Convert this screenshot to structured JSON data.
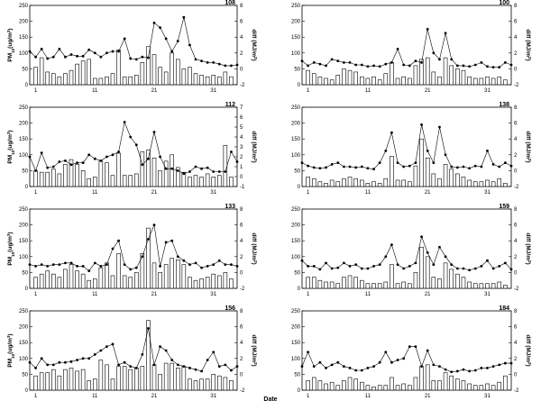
{
  "figure": {
    "xlabel": "Date"
  },
  "chart_data": [
    {
      "type": "bar+line",
      "title": "108",
      "ylabel": "PM10(ug/m3)",
      "y2label": "diff (MJ/m2)",
      "ylim": [
        0,
        250
      ],
      "yticks": [
        0,
        50,
        100,
        150,
        200,
        250
      ],
      "y2lim": [
        -2,
        8
      ],
      "y2ticks": [
        -2,
        0,
        2,
        4,
        6,
        8
      ],
      "xticks": [
        1,
        11,
        21,
        31
      ],
      "bars": [
        55,
        85,
        40,
        35,
        25,
        35,
        45,
        65,
        75,
        80,
        20,
        20,
        25,
        35,
        110,
        25,
        25,
        30,
        70,
        120,
        95,
        55,
        40,
        100,
        80,
        50,
        55,
        35,
        30,
        25,
        30,
        25,
        40,
        25
      ],
      "line": [
        2.2,
        1.5,
        2.5,
        1.3,
        1.5,
        2.5,
        1.5,
        1.8,
        1.6,
        1.6,
        2.4,
        2.0,
        1.5,
        2.0,
        2.2,
        2.2,
        3.8,
        1.3,
        1.2,
        1.5,
        1.4,
        5.8,
        5.2,
        3.8,
        2.2,
        3.5,
        6.5,
        3.0,
        1.2,
        1.0,
        0.8,
        0.8,
        0.6,
        0.4,
        0.4,
        0.5
      ]
    },
    {
      "type": "bar+line",
      "title": "100",
      "ylabel": "",
      "y2label": "diff (MJ/m2)",
      "ylim": [
        0,
        250
      ],
      "yticks": [
        0,
        50,
        100,
        150,
        200,
        250
      ],
      "y2lim": [
        -2,
        8
      ],
      "y2ticks": [
        -2,
        0,
        2,
        4,
        6,
        8
      ],
      "xticks": [
        1,
        11,
        21,
        31
      ],
      "bars": [
        45,
        35,
        25,
        20,
        15,
        30,
        50,
        45,
        40,
        25,
        20,
        25,
        15,
        35,
        70,
        20,
        25,
        20,
        60,
        80,
        85,
        40,
        25,
        85,
        60,
        50,
        45,
        25,
        20,
        20,
        25,
        20,
        25,
        15
      ],
      "line": [
        1.0,
        0.4,
        0.8,
        0.6,
        0.4,
        1.2,
        1.0,
        0.8,
        0.8,
        0.5,
        0.5,
        0.3,
        0.4,
        0.3,
        0.6,
        0.8,
        2.5,
        0.5,
        0.4,
        1.0,
        0.8,
        5.0,
        2.0,
        1.2,
        4.5,
        1.2,
        0.4,
        0.4,
        0.3,
        0.5,
        0.8,
        0.3,
        0.2,
        0.2,
        0.8,
        0.5
      ]
    },
    {
      "type": "bar+line",
      "title": "112",
      "ylabel": "PM10(ug/m3)",
      "y2label": "diff (MJ/m2)",
      "ylim": [
        0,
        250
      ],
      "yticks": [
        0,
        50,
        100,
        150,
        200,
        250
      ],
      "y2lim": [
        -1,
        7
      ],
      "y2ticks": [
        -1,
        0,
        1,
        2,
        3,
        4,
        5,
        6,
        7
      ],
      "xticks": [
        1,
        11,
        21,
        31
      ],
      "bars": [
        50,
        45,
        45,
        55,
        40,
        70,
        85,
        70,
        50,
        25,
        30,
        80,
        75,
        35,
        105,
        35,
        35,
        40,
        110,
        115,
        90,
        50,
        80,
        100,
        60,
        45,
        30,
        35,
        30,
        40,
        30,
        35,
        130,
        30
      ],
      "line": [
        2.0,
        0.6,
        2.4,
        0.9,
        1.0,
        1.5,
        1.6,
        1.2,
        1.4,
        1.4,
        2.2,
        1.8,
        1.6,
        2.0,
        2.2,
        2.5,
        5.5,
        4.0,
        3.2,
        1.2,
        1.8,
        4.5,
        2.0,
        0.8,
        0.8,
        0.6,
        0.3,
        0.5,
        1.0,
        0.8,
        0.9,
        0.5,
        0.5,
        0.5,
        2.5,
        1.5
      ]
    },
    {
      "type": "bar+line",
      "title": "138",
      "ylabel": "",
      "y2label": "diff (MJ/m2)",
      "ylim": [
        0,
        250
      ],
      "yticks": [
        0,
        50,
        100,
        150,
        200,
        250
      ],
      "y2lim": [
        -2,
        8
      ],
      "y2ticks": [
        -2,
        0,
        2,
        4,
        6,
        8
      ],
      "xticks": [
        1,
        11,
        21,
        31
      ],
      "bars": [
        30,
        25,
        15,
        10,
        20,
        15,
        25,
        30,
        25,
        20,
        10,
        15,
        10,
        25,
        95,
        20,
        20,
        15,
        65,
        150,
        90,
        40,
        25,
        70,
        55,
        40,
        30,
        20,
        15,
        15,
        20,
        15,
        25,
        10
      ],
      "line": [
        1.0,
        0.6,
        0.4,
        0.3,
        0.4,
        0.8,
        1.0,
        0.5,
        0.5,
        0.4,
        0.5,
        0.3,
        0.2,
        1.0,
        2.5,
        4.8,
        1.0,
        0.5,
        0.6,
        1.0,
        5.8,
        2.5,
        1.0,
        5.5,
        2.0,
        0.5,
        0.4,
        0.5,
        0.3,
        0.6,
        0.5,
        2.5,
        0.8,
        0.5,
        1.0,
        0.6
      ]
    },
    {
      "type": "bar+line",
      "title": "133",
      "ylabel": "PM10(ug/m3)",
      "y2label": "diff (MJ/m2)",
      "ylim": [
        0,
        250
      ],
      "yticks": [
        0,
        50,
        100,
        150,
        200,
        250
      ],
      "y2lim": [
        -2,
        8
      ],
      "y2ticks": [
        -2,
        0,
        2,
        4,
        6,
        8
      ],
      "xticks": [
        1,
        11,
        21,
        31
      ],
      "bars": [
        35,
        45,
        55,
        45,
        35,
        60,
        75,
        55,
        45,
        25,
        30,
        65,
        80,
        40,
        110,
        40,
        35,
        50,
        110,
        190,
        80,
        50,
        75,
        95,
        90,
        75,
        35,
        25,
        30,
        35,
        45,
        40,
        50,
        30
      ],
      "line": [
        1.0,
        0.8,
        1.0,
        0.8,
        1.0,
        1.0,
        1.2,
        1.2,
        0.8,
        0.8,
        0.2,
        1.2,
        0.8,
        1.0,
        3.0,
        4.0,
        1.0,
        0.4,
        0.6,
        2.0,
        4.2,
        6.0,
        0.8,
        3.8,
        4.0,
        2.0,
        1.5,
        1.0,
        1.2,
        0.6,
        0.8,
        1.0,
        1.5,
        1.0,
        1.0,
        0.8
      ]
    },
    {
      "type": "bar+line",
      "title": "159",
      "ylabel": "",
      "y2label": "diff (MJ/m2)",
      "ylim": [
        0,
        250
      ],
      "yticks": [
        0,
        50,
        100,
        150,
        200,
        250
      ],
      "y2lim": [
        -2,
        8
      ],
      "y2ticks": [
        -2,
        0,
        2,
        4,
        6,
        8
      ],
      "xticks": [
        1,
        11,
        21,
        31
      ],
      "bars": [
        35,
        35,
        25,
        20,
        20,
        15,
        35,
        40,
        35,
        25,
        15,
        15,
        15,
        20,
        75,
        15,
        20,
        15,
        50,
        130,
        100,
        35,
        30,
        80,
        60,
        45,
        35,
        20,
        15,
        15,
        15,
        15,
        20,
        10
      ],
      "line": [
        1.5,
        0.8,
        0.8,
        0.4,
        1.2,
        0.5,
        0.6,
        1.2,
        0.8,
        1.0,
        0.5,
        0.5,
        0.8,
        1.0,
        2.0,
        3.5,
        1.0,
        0.5,
        0.8,
        1.2,
        4.5,
        2.5,
        1.0,
        3.2,
        2.0,
        1.0,
        0.5,
        0.5,
        0.3,
        0.5,
        0.8,
        1.5,
        0.5,
        0.8,
        1.2,
        0.4
      ]
    },
    {
      "type": "bar+line",
      "title": "156",
      "ylabel": "PM10(ug/m3)",
      "y2label": "diff (MJ/m2)",
      "ylim": [
        0,
        250
      ],
      "yticks": [
        0,
        50,
        100,
        150,
        200,
        250
      ],
      "y2lim": [
        -2,
        8
      ],
      "y2ticks": [
        -2,
        0,
        2,
        4,
        6,
        8
      ],
      "xticks": [
        1,
        11,
        21,
        31
      ],
      "bars": [
        45,
        55,
        55,
        65,
        45,
        65,
        70,
        60,
        65,
        30,
        35,
        95,
        80,
        35,
        75,
        75,
        65,
        70,
        75,
        220,
        80,
        50,
        85,
        85,
        70,
        75,
        35,
        30,
        35,
        35,
        50,
        45,
        40,
        30
      ],
      "line": [
        1.5,
        0.8,
        2.0,
        1.2,
        1.2,
        1.5,
        1.5,
        1.6,
        1.8,
        2.0,
        2.0,
        2.5,
        3.0,
        3.5,
        3.8,
        1.2,
        1.5,
        1.0,
        0.8,
        2.5,
        5.8,
        1.2,
        3.5,
        3.0,
        1.8,
        1.2,
        1.0,
        0.8,
        0.6,
        0.4,
        1.8,
        2.8,
        1.0,
        1.2,
        0.5,
        1.0
      ]
    },
    {
      "type": "bar+line",
      "title": "184",
      "ylabel": "",
      "y2label": "diff (MJ/m2)",
      "ylim": [
        0,
        250
      ],
      "yticks": [
        0,
        50,
        100,
        150,
        200,
        250
      ],
      "y2lim": [
        -2,
        8
      ],
      "y2ticks": [
        -2,
        0,
        2,
        4,
        6,
        8
      ],
      "xticks": [
        1,
        11,
        21,
        31
      ],
      "bars": [
        30,
        40,
        30,
        20,
        25,
        15,
        30,
        40,
        35,
        25,
        15,
        10,
        15,
        15,
        40,
        15,
        20,
        15,
        40,
        75,
        80,
        30,
        30,
        55,
        45,
        35,
        30,
        20,
        15,
        15,
        20,
        15,
        25,
        45
      ],
      "line": [
        1.0,
        2.8,
        1.0,
        1.5,
        0.8,
        1.2,
        1.5,
        1.0,
        0.8,
        0.5,
        0.5,
        0.8,
        1.0,
        1.5,
        2.8,
        1.5,
        1.8,
        2.0,
        3.5,
        3.5,
        1.0,
        3.0,
        1.2,
        1.0,
        0.6,
        0.3,
        0.4,
        0.6,
        0.4,
        0.5,
        0.8,
        0.8,
        1.0,
        1.2,
        1.4,
        1.4
      ]
    }
  ]
}
